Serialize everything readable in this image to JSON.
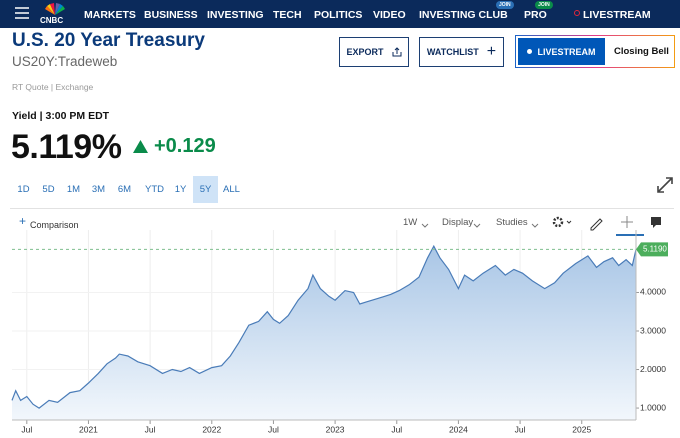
{
  "nav": {
    "brand": "CNBC",
    "items": [
      {
        "label": "MARKETS"
      },
      {
        "label": "BUSINESS"
      },
      {
        "label": "INVESTING"
      },
      {
        "label": "TECH"
      },
      {
        "label": "POLITICS"
      },
      {
        "label": "VIDEO"
      },
      {
        "label": "INVESTING CLUB",
        "badge": "JOIN"
      },
      {
        "label": "PRO",
        "badge": "JOIN"
      },
      {
        "label": "LIVESTREAM"
      }
    ]
  },
  "header": {
    "title": "U.S. 20 Year Treasury",
    "symbol": "US20Y:Tradeweb",
    "source": "RT Quote | Exchange",
    "export": "EXPORT",
    "watchlist": "WATCHLIST",
    "livestream": "LIVESTREAM",
    "show": "Closing Bell"
  },
  "quote": {
    "label": "Yield | 3:00 PM EDT",
    "value": "5.119%",
    "change": "+0.129"
  },
  "ranges": [
    "1D",
    "5D",
    "1M",
    "3M",
    "6M",
    "YTD",
    "1Y",
    "5Y",
    "ALL"
  ],
  "active_range": "5Y",
  "toolbar": {
    "comparison": "Comparison",
    "interval": "1W",
    "display": "Display",
    "studies": "Studies"
  },
  "chart_data": {
    "type": "area",
    "color": "#4a7cb8",
    "x": [
      2020.38,
      2020.41,
      2020.45,
      2020.5,
      2020.55,
      2020.6,
      2020.68,
      2020.75,
      2020.85,
      2020.93,
      2021.0,
      2021.08,
      2021.15,
      2021.22,
      2021.25,
      2021.32,
      2021.4,
      2021.5,
      2021.6,
      2021.68,
      2021.75,
      2021.82,
      2021.9,
      2022.0,
      2022.08,
      2022.15,
      2022.22,
      2022.3,
      2022.38,
      2022.45,
      2022.5,
      2022.55,
      2022.62,
      2022.7,
      2022.78,
      2022.82,
      2022.88,
      2022.95,
      2023.0,
      2023.08,
      2023.15,
      2023.2,
      2023.25,
      2023.35,
      2023.45,
      2023.52,
      2023.6,
      2023.68,
      2023.75,
      2023.8,
      2023.85,
      2023.92,
      2024.0,
      2024.05,
      2024.12,
      2024.2,
      2024.3,
      2024.38,
      2024.45,
      2024.52,
      2024.6,
      2024.7,
      2024.78,
      2024.85,
      2024.95,
      2025.05,
      2025.12,
      2025.18,
      2025.25,
      2025.3,
      2025.36,
      2025.41,
      2025.44
    ],
    "values": [
      1.2,
      1.45,
      1.2,
      1.3,
      1.1,
      1.0,
      1.2,
      1.15,
      1.4,
      1.45,
      1.65,
      1.9,
      2.15,
      2.3,
      2.4,
      2.35,
      2.2,
      2.1,
      1.9,
      2.0,
      1.95,
      2.05,
      1.9,
      2.05,
      2.1,
      2.35,
      2.7,
      3.15,
      3.25,
      3.5,
      3.3,
      3.2,
      3.4,
      3.8,
      4.1,
      4.45,
      4.1,
      3.9,
      3.8,
      4.05,
      4.0,
      3.7,
      3.75,
      3.85,
      3.95,
      4.05,
      4.2,
      4.4,
      4.9,
      5.2,
      4.9,
      4.6,
      4.1,
      4.45,
      4.3,
      4.5,
      4.7,
      4.45,
      4.6,
      4.5,
      4.3,
      4.1,
      4.25,
      4.5,
      4.75,
      4.95,
      4.65,
      4.8,
      4.9,
      4.7,
      4.85,
      4.7,
      5.119
    ],
    "last_label": "5.1190",
    "xlim": [
      2020.38,
      2025.44
    ],
    "ylim": [
      0.69,
      5.44
    ],
    "xticks": [
      {
        "value": 2020.5,
        "label": "Jul"
      },
      2021,
      {
        "value": 2021.5,
        "label": "Jul"
      },
      2022,
      {
        "value": 2022.5,
        "label": "Jul"
      },
      2023,
      {
        "value": 2023.5,
        "label": "Jul"
      },
      2024,
      {
        "value": 2024.5,
        "label": "Jul"
      },
      2025
    ],
    "yticks": [
      {
        "value": 1,
        "label": "1.0000"
      },
      {
        "value": 2,
        "label": "2.0000"
      },
      {
        "value": 3,
        "label": "3.0000"
      },
      {
        "value": 4,
        "label": "4.0000"
      }
    ],
    "grid": true
  }
}
